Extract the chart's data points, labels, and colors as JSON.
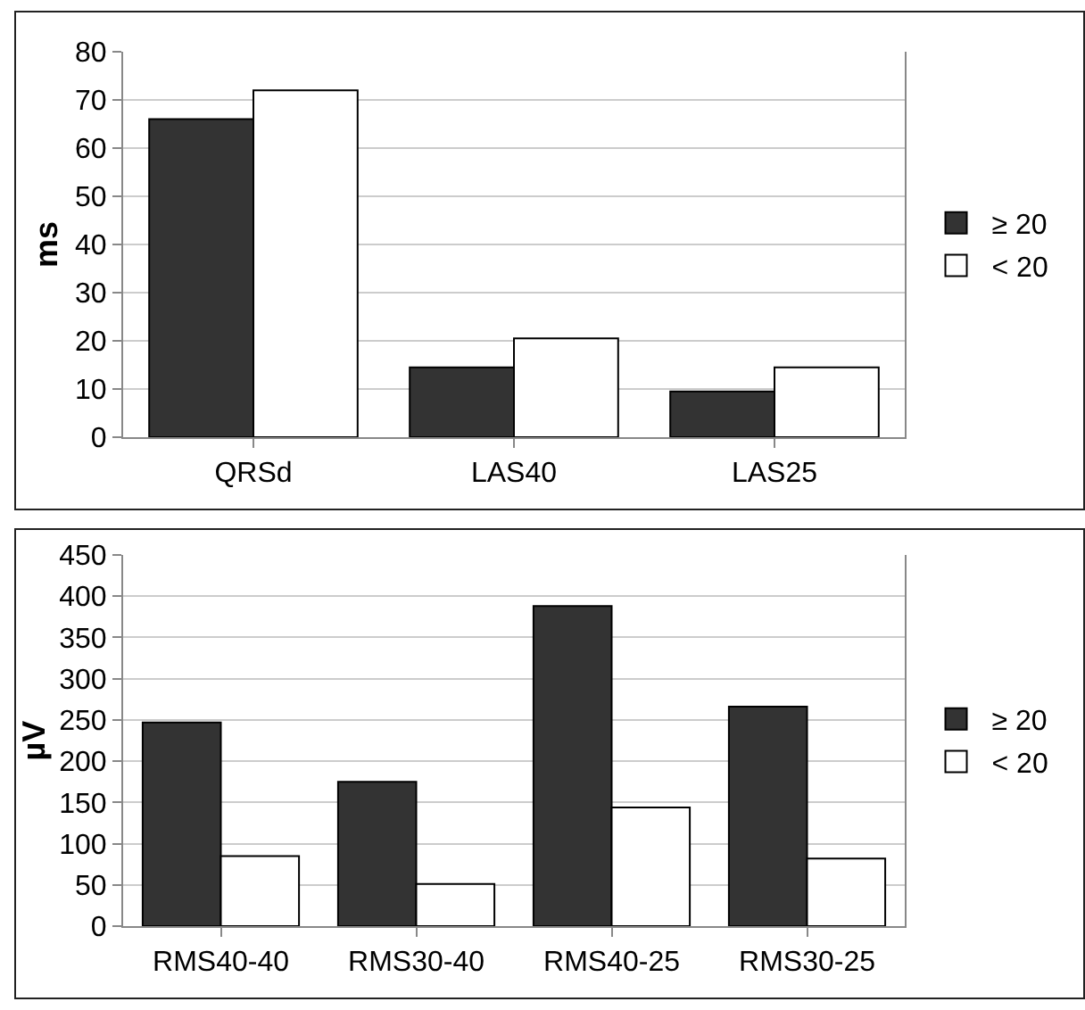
{
  "chart_data": [
    {
      "type": "bar",
      "ylabel": "ms",
      "categories": [
        "QRSd",
        "LAS40",
        "LAS25"
      ],
      "series": [
        {
          "name": "≥ 20",
          "color": "#333333",
          "values": [
            66,
            14.5,
            9.5
          ]
        },
        {
          "name": "< 20",
          "color": "#ffffff",
          "values": [
            72,
            20.5,
            14.5
          ]
        }
      ],
      "ylim": [
        0,
        80
      ],
      "yticks": [
        0,
        10,
        20,
        30,
        40,
        50,
        60,
        70,
        80
      ],
      "grid": "y",
      "legend": "right"
    },
    {
      "type": "bar",
      "ylabel": "µV",
      "categories": [
        "RMS40-40",
        "RMS30-40",
        "RMS40-25",
        "RMS30-25"
      ],
      "series": [
        {
          "name": "≥ 20",
          "color": "#333333",
          "values": [
            247,
            175,
            388,
            266
          ]
        },
        {
          "name": "< 20",
          "color": "#ffffff",
          "values": [
            85,
            51,
            144,
            82
          ]
        }
      ],
      "ylim": [
        0,
        450
      ],
      "yticks": [
        0,
        50,
        100,
        150,
        200,
        250,
        300,
        350,
        400,
        450
      ],
      "grid": "y",
      "legend": "right"
    }
  ]
}
